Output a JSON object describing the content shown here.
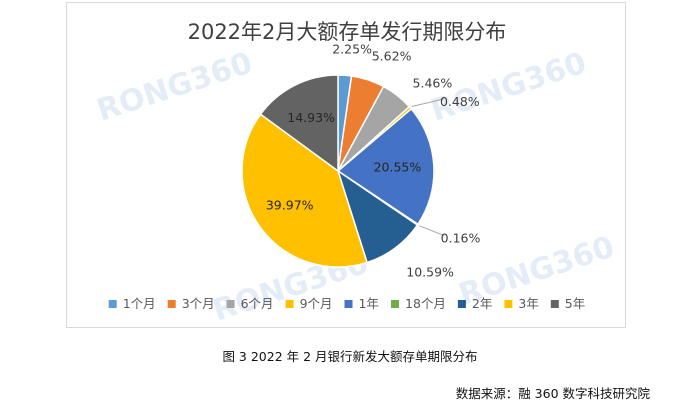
{
  "figure": {
    "caption": "图 3  2022 年 2 月银行新发大额存单期限分布",
    "source": "数据来源：融 360 数字科技研究院",
    "watermark": "RONG360"
  },
  "chart_data": {
    "type": "pie",
    "title": "2022年2月大额存单发行期限分布",
    "legend_position": "bottom",
    "categories": [
      "1个月",
      "3个月",
      "6个月",
      "9个月",
      "1年",
      "18个月",
      "2年",
      "3年",
      "5年"
    ],
    "values": [
      2.25,
      5.62,
      5.46,
      0.48,
      20.55,
      0.16,
      10.59,
      39.97,
      14.93
    ],
    "labels": [
      "2.25%",
      "5.62%",
      "5.46%",
      "0.48%",
      "20.55%",
      "0.16%",
      "10.59%",
      "39.97%",
      "14.93%"
    ],
    "colors": [
      "#5b9bd5",
      "#ed7d31",
      "#a5a5a5",
      "#ffc000",
      "#4472c4",
      "#70ad47",
      "#255e91",
      "#ffc000",
      "#636363"
    ]
  }
}
